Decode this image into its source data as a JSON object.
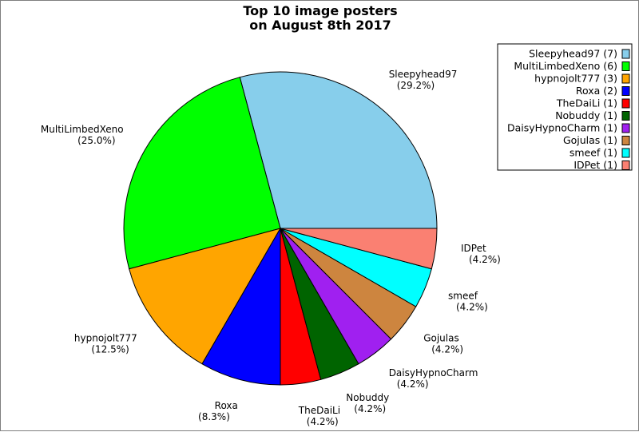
{
  "chart_data": {
    "type": "pie",
    "title_lines": [
      "Top 10 image posters",
      "on August 8th 2017"
    ],
    "legend_position": "top-right",
    "slices": [
      {
        "name": "Sleepyhead97",
        "count": 7,
        "percent": "29.2%",
        "color": "#87ceeb",
        "legend": "Sleepyhead97 (7)"
      },
      {
        "name": "MultiLimbedXeno",
        "count": 6,
        "percent": "25.0%",
        "color": "#00ff00",
        "legend": "MultiLimbedXeno (6)"
      },
      {
        "name": "hypnojolt777",
        "count": 3,
        "percent": "12.5%",
        "color": "#ffa500",
        "legend": "hypnojolt777 (3)"
      },
      {
        "name": "Roxa",
        "count": 2,
        "percent": "8.3%",
        "color": "#0000ff",
        "legend": "Roxa (2)"
      },
      {
        "name": "TheDaiLi",
        "count": 1,
        "percent": "4.2%",
        "color": "#ff0000",
        "legend": "TheDaiLi (1)"
      },
      {
        "name": "Nobuddy",
        "count": 1,
        "percent": "4.2%",
        "color": "#006400",
        "legend": "Nobuddy (1)"
      },
      {
        "name": "DaisyHypnoCharm",
        "count": 1,
        "percent": "4.2%",
        "color": "#a020f0",
        "legend": "DaisyHypnoCharm (1)"
      },
      {
        "name": "Gojulas",
        "count": 1,
        "percent": "4.2%",
        "color": "#cd853f",
        "legend": "Gojulas (1)"
      },
      {
        "name": "smeef",
        "count": 1,
        "percent": "4.2%",
        "color": "#00ffff",
        "legend": "smeef (1)"
      },
      {
        "name": "IDPet",
        "count": 1,
        "percent": "4.2%",
        "color": "#fa8072",
        "legend": "IDPet (1)"
      }
    ]
  }
}
